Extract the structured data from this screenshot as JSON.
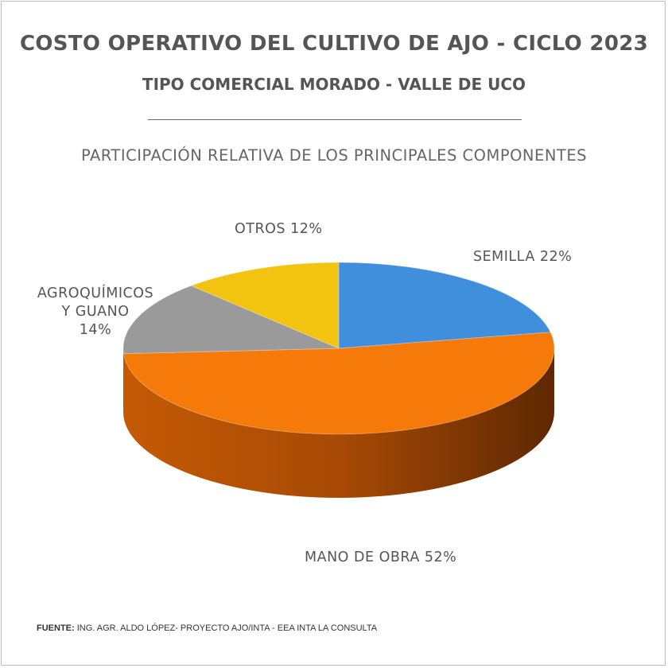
{
  "chart_data": {
    "type": "pie",
    "title": "COSTO OPERATIVO DEL CULTIVO DE AJO - CICLO 2023",
    "subtitle": "TIPO COMERCIAL MORADO - VALLE DE UCO",
    "heading": "PARTICIPACIÓN RELATIVA DE LOS PRINCIPALES COMPONENTES",
    "slices": [
      {
        "name": "SEMILLA",
        "value": 22,
        "color": "#3f8fdc",
        "label": "SEMILLA 22%"
      },
      {
        "name": "MANO DE OBRA",
        "value": 52,
        "color": "#f57a0a",
        "label": "MANO DE OBRA 52%"
      },
      {
        "name": "AGROQUÍMICOS Y GUANO",
        "value": 14,
        "color": "#9a9a9a",
        "label_lines": [
          "AGROQUÍMICOS",
          "Y GUANO",
          "14%"
        ]
      },
      {
        "name": "OTROS",
        "value": 12,
        "color": "#f2c40f",
        "label": "OTROS 12%"
      }
    ]
  },
  "footer": {
    "source_label": "FUENTE:",
    "source_text": " ING. AGR. ALDO LÓPEZ- PROYECTO AJO/INTA - EEA INTA LA CONSULTA"
  }
}
